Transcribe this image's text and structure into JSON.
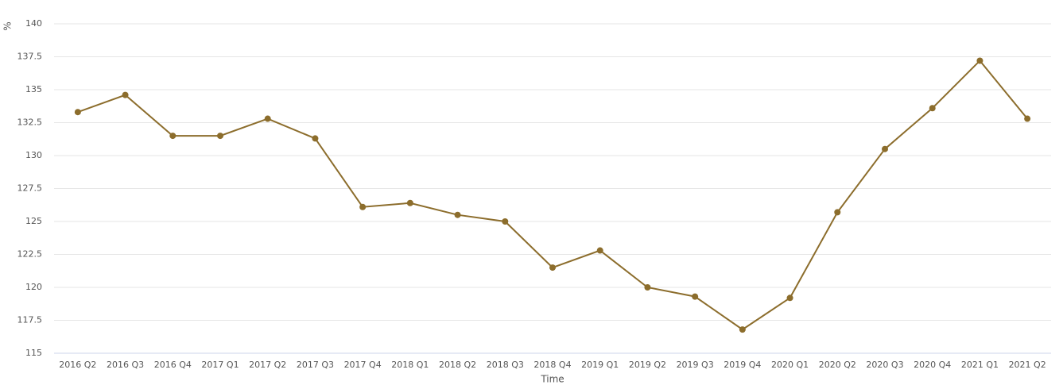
{
  "chart_data": {
    "type": "line",
    "x_label": "Time",
    "y_label": "%",
    "categories": [
      "2016 Q2",
      "2016 Q3",
      "2016 Q4",
      "2017 Q1",
      "2017 Q2",
      "2017 Q3",
      "2017 Q4",
      "2018 Q1",
      "2018 Q2",
      "2018 Q3",
      "2018 Q4",
      "2019 Q1",
      "2019 Q2",
      "2019 Q3",
      "2019 Q4",
      "2020 Q1",
      "2020 Q2",
      "2020 Q3",
      "2020 Q4",
      "2021 Q1",
      "2021 Q2"
    ],
    "values": [
      133.3,
      134.6,
      131.5,
      131.5,
      132.8,
      131.3,
      126.1,
      126.4,
      125.5,
      125.0,
      121.5,
      122.8,
      120.0,
      119.3,
      116.8,
      119.2,
      125.7,
      130.5,
      133.6,
      137.2,
      132.8
    ],
    "color": "#8c6d2c",
    "ylim": [
      115,
      140
    ],
    "yticks": [
      115,
      117.5,
      120,
      122.5,
      125,
      127.5,
      130,
      132.5,
      135,
      137.5,
      140
    ],
    "grid": true
  }
}
